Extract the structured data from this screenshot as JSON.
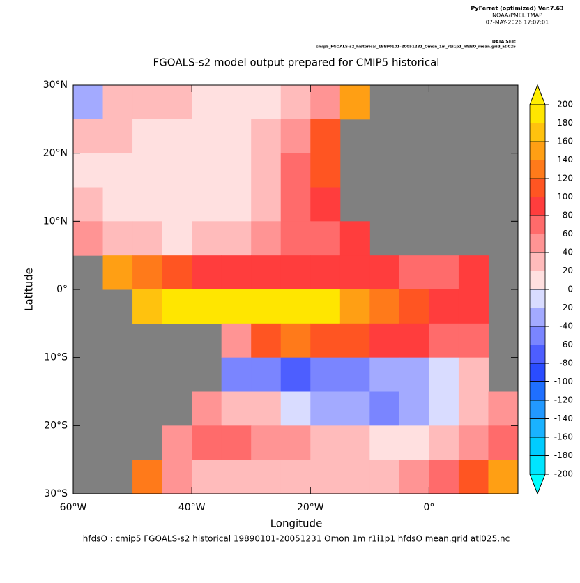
{
  "header": {
    "lines": [
      "PyFerret (optimized) Ver.7.63",
      "NOAA/PMEL TMAP",
      "07-MAY-2026 17:07:01"
    ],
    "dataset_label": "DATA SET:",
    "dataset": "cmip5_FGOALS-s2_historical_19890101-20051231_Omon_1m_r1i1p1_hfdsO_mean.grid_atl025"
  },
  "chart_data": {
    "type": "heatmap",
    "title": "FGOALS-s2 model output prepared for CMIP5 historical",
    "x_label": "Longitude",
    "y_label": "Latitude",
    "footer": "hfdsO : cmip5 FGOALS-s2 historical 19890101-20051231 Omon 1m r1i1p1 hfdsO mean.grid atl025.nc",
    "x": [
      -57.5,
      -52.5,
      -47.5,
      -42.5,
      -37.5,
      -32.5,
      -27.5,
      -22.5,
      -17.5,
      -12.5,
      -7.5,
      -2.5,
      2.5,
      7.5,
      12.5
    ],
    "y": [
      27.5,
      22.5,
      17.5,
      12.5,
      7.5,
      2.5,
      -2.5,
      -7.5,
      -12.5,
      -17.5,
      -22.5,
      -27.5
    ],
    "z": [
      [
        -40,
        30,
        30,
        30,
        10,
        10,
        10,
        20,
        50,
        150,
        null,
        null,
        null,
        null,
        null
      ],
      [
        30,
        25,
        10,
        10,
        10,
        10,
        20,
        50,
        110,
        null,
        null,
        null,
        null,
        null,
        null
      ],
      [
        10,
        10,
        10,
        10,
        10,
        10,
        30,
        60,
        110,
        null,
        null,
        null,
        null,
        null,
        null
      ],
      [
        20,
        10,
        10,
        0,
        10,
        10,
        30,
        60,
        90,
        null,
        null,
        null,
        null,
        null,
        null
      ],
      [
        40,
        20,
        20,
        10,
        20,
        30,
        40,
        60,
        70,
        80,
        null,
        null,
        null,
        null,
        null
      ],
      [
        null,
        150,
        120,
        110,
        90,
        80,
        80,
        90,
        80,
        80,
        80,
        70,
        60,
        80,
        null
      ],
      [
        null,
        null,
        170,
        190,
        200,
        200,
        200,
        190,
        180,
        150,
        120,
        100,
        90,
        80,
        null
      ],
      [
        null,
        null,
        null,
        null,
        null,
        40,
        100,
        120,
        110,
        100,
        90,
        80,
        70,
        60,
        null
      ],
      [
        null,
        null,
        null,
        null,
        null,
        -60,
        -60,
        -80,
        -60,
        -60,
        -40,
        -30,
        -20,
        20,
        null
      ],
      [
        null,
        null,
        null,
        null,
        40,
        30,
        20,
        -10,
        -30,
        -40,
        -50,
        -40,
        -20,
        20,
        40
      ],
      [
        null,
        null,
        null,
        50,
        60,
        60,
        50,
        40,
        30,
        20,
        10,
        10,
        20,
        40,
        60
      ],
      [
        null,
        null,
        120,
        40,
        30,
        20,
        20,
        30,
        30,
        30,
        30,
        40,
        60,
        100,
        150
      ]
    ],
    "xlim": [
      -60,
      15
    ],
    "ylim": [
      -30,
      30
    ],
    "xticks": [
      {
        "value": -60,
        "label": "60°W"
      },
      {
        "value": -40,
        "label": "40°W"
      },
      {
        "value": -20,
        "label": "20°W"
      },
      {
        "value": 0,
        "label": "0°"
      }
    ],
    "yticks": [
      {
        "value": 30,
        "label": "30°N"
      },
      {
        "value": 20,
        "label": "20°N"
      },
      {
        "value": 10,
        "label": "10°N"
      },
      {
        "value": 0,
        "label": "0°"
      },
      {
        "value": -10,
        "label": "10°S"
      },
      {
        "value": -20,
        "label": "20°S"
      },
      {
        "value": -30,
        "label": "30°S"
      }
    ],
    "land_color": "#808080",
    "levels": [
      -200,
      -180,
      -160,
      -140,
      -120,
      -100,
      -80,
      -60,
      -40,
      -20,
      0,
      20,
      40,
      60,
      80,
      100,
      120,
      140,
      160,
      180,
      200
    ],
    "colors": [
      "#00e5ff",
      "#00ccff",
      "#1ab2ff",
      "#2299ff",
      "#1f6fff",
      "#2a4cff",
      "#4d5eff",
      "#7a85ff",
      "#a3aaff",
      "#d9dcff",
      "#ffe0e0",
      "#ffbbbb",
      "#ff9494",
      "#ff6b6b",
      "#ff3d3d",
      "#ff5522",
      "#ff7a1a",
      "#ff9f14",
      "#ffc20e",
      "#ffe600"
    ],
    "under_color": "#00ffff",
    "over_color": "#ffee00"
  }
}
